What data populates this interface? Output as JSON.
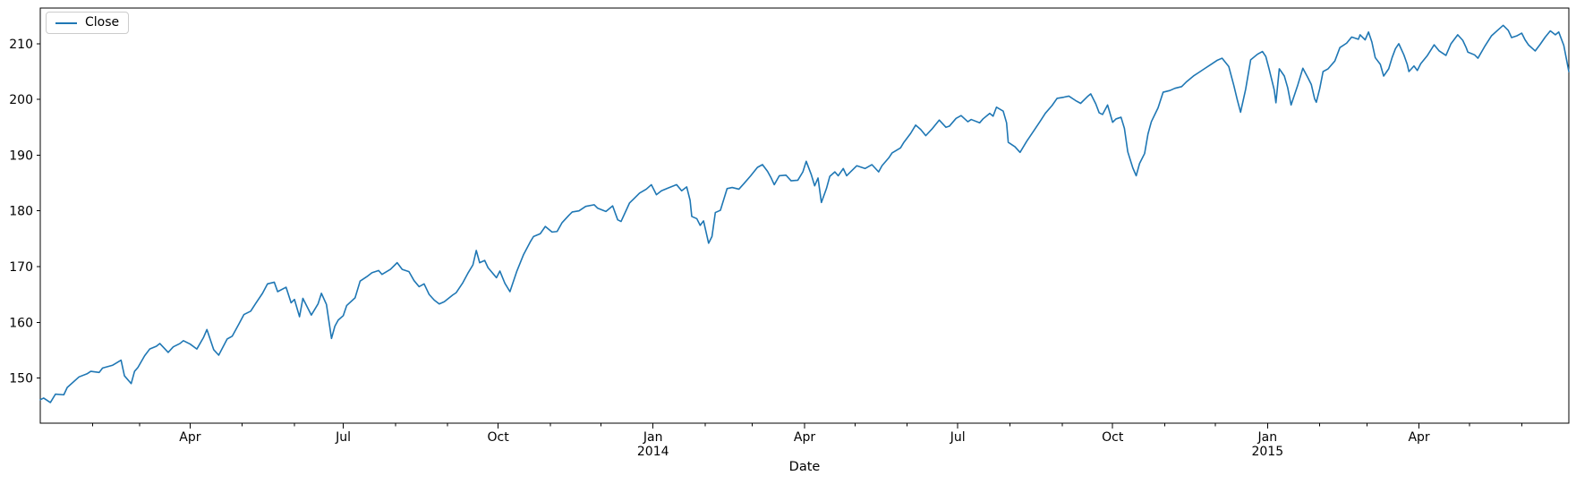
{
  "chart_data": {
    "type": "line",
    "title": "",
    "xlabel": "Date",
    "ylabel": "",
    "grid": false,
    "background": "#ffffff",
    "axis_color": "#000000",
    "tick_label_color": "#000000",
    "legend": {
      "position": "upper left",
      "entries": [
        {
          "label": "Close",
          "color": "#1f77b4"
        }
      ]
    },
    "x_unit": "day offset since 2013-01-02",
    "xlim": [
      0,
      908
    ],
    "ylim": [
      141.9,
      216.4
    ],
    "yticks": [
      150,
      160,
      170,
      180,
      190,
      200,
      210
    ],
    "xticks_major": [
      {
        "day": 89,
        "label": "Apr"
      },
      {
        "day": 180,
        "label": "Jul"
      },
      {
        "day": 272,
        "label": "Oct"
      },
      {
        "day": 364,
        "label": "Jan",
        "year": "2014"
      },
      {
        "day": 454,
        "label": "Apr"
      },
      {
        "day": 545,
        "label": "Jul"
      },
      {
        "day": 637,
        "label": "Oct"
      },
      {
        "day": 729,
        "label": "Jan",
        "year": "2015"
      },
      {
        "day": 819,
        "label": "Apr"
      }
    ],
    "xticks_minor": [
      31,
      59,
      120,
      151,
      211,
      242,
      303,
      333,
      395,
      423,
      484,
      515,
      576,
      607,
      668,
      698,
      760,
      788,
      849,
      880
    ],
    "series": [
      {
        "name": "Close",
        "color": "#1f77b4",
        "line_width": 1.6,
        "points": [
          [
            0,
            146.1
          ],
          [
            2,
            146.4
          ],
          [
            6,
            145.6
          ],
          [
            9,
            147.1
          ],
          [
            14,
            147.0
          ],
          [
            16,
            148.3
          ],
          [
            23,
            150.2
          ],
          [
            28,
            150.8
          ],
          [
            30,
            151.2
          ],
          [
            35,
            151.0
          ],
          [
            37,
            151.8
          ],
          [
            43,
            152.3
          ],
          [
            48,
            153.2
          ],
          [
            50,
            150.4
          ],
          [
            54,
            149.0
          ],
          [
            56,
            151.2
          ],
          [
            58,
            151.9
          ],
          [
            62,
            154.0
          ],
          [
            65,
            155.2
          ],
          [
            69,
            155.7
          ],
          [
            71,
            156.2
          ],
          [
            76,
            154.6
          ],
          [
            79,
            155.6
          ],
          [
            83,
            156.2
          ],
          [
            85,
            156.7
          ],
          [
            89,
            156.1
          ],
          [
            93,
            155.2
          ],
          [
            97,
            157.3
          ],
          [
            99,
            158.7
          ],
          [
            103,
            155.1
          ],
          [
            106,
            154.1
          ],
          [
            111,
            157.0
          ],
          [
            114,
            157.5
          ],
          [
            118,
            159.7
          ],
          [
            121,
            161.4
          ],
          [
            125,
            162.0
          ],
          [
            128,
            163.4
          ],
          [
            132,
            165.2
          ],
          [
            135,
            166.9
          ],
          [
            139,
            167.2
          ],
          [
            141,
            165.5
          ],
          [
            146,
            166.3
          ],
          [
            149,
            163.5
          ],
          [
            151,
            164.1
          ],
          [
            154,
            161.0
          ],
          [
            156,
            164.3
          ],
          [
            161,
            161.3
          ],
          [
            165,
            163.3
          ],
          [
            167,
            165.2
          ],
          [
            170,
            163.2
          ],
          [
            173,
            157.1
          ],
          [
            175,
            159.3
          ],
          [
            177,
            160.4
          ],
          [
            180,
            161.2
          ],
          [
            182,
            163.0
          ],
          [
            187,
            164.4
          ],
          [
            190,
            167.4
          ],
          [
            194,
            168.2
          ],
          [
            197,
            168.9
          ],
          [
            201,
            169.3
          ],
          [
            203,
            168.6
          ],
          [
            208,
            169.5
          ],
          [
            212,
            170.7
          ],
          [
            215,
            169.5
          ],
          [
            219,
            169.1
          ],
          [
            222,
            167.5
          ],
          [
            225,
            166.4
          ],
          [
            228,
            166.9
          ],
          [
            231,
            165.0
          ],
          [
            234,
            164.0
          ],
          [
            237,
            163.3
          ],
          [
            240,
            163.7
          ],
          [
            245,
            164.9
          ],
          [
            247,
            165.3
          ],
          [
            251,
            167.1
          ],
          [
            254,
            168.8
          ],
          [
            257,
            170.3
          ],
          [
            259,
            172.9
          ],
          [
            261,
            170.7
          ],
          [
            264,
            171.1
          ],
          [
            266,
            169.8
          ],
          [
            271,
            168.0
          ],
          [
            273,
            169.2
          ],
          [
            276,
            167.0
          ],
          [
            279,
            165.5
          ],
          [
            283,
            169.1
          ],
          [
            287,
            172.1
          ],
          [
            291,
            174.4
          ],
          [
            293,
            175.4
          ],
          [
            297,
            175.9
          ],
          [
            300,
            177.2
          ],
          [
            304,
            176.2
          ],
          [
            307,
            176.3
          ],
          [
            310,
            177.9
          ],
          [
            314,
            179.2
          ],
          [
            316,
            179.8
          ],
          [
            320,
            180.0
          ],
          [
            324,
            180.8
          ],
          [
            329,
            181.1
          ],
          [
            331,
            180.5
          ],
          [
            336,
            179.9
          ],
          [
            340,
            180.9
          ],
          [
            343,
            178.4
          ],
          [
            345,
            178.1
          ],
          [
            350,
            181.4
          ],
          [
            353,
            182.3
          ],
          [
            356,
            183.2
          ],
          [
            360,
            183.9
          ],
          [
            363,
            184.7
          ],
          [
            366,
            182.9
          ],
          [
            369,
            183.6
          ],
          [
            373,
            184.1
          ],
          [
            378,
            184.7
          ],
          [
            381,
            183.6
          ],
          [
            384,
            184.3
          ],
          [
            386,
            181.9
          ],
          [
            387,
            179.0
          ],
          [
            390,
            178.6
          ],
          [
            392,
            177.4
          ],
          [
            394,
            178.2
          ],
          [
            397,
            174.2
          ],
          [
            399,
            175.4
          ],
          [
            401,
            179.7
          ],
          [
            404,
            180.1
          ],
          [
            408,
            184.0
          ],
          [
            411,
            184.2
          ],
          [
            415,
            183.9
          ],
          [
            418,
            184.9
          ],
          [
            422,
            186.3
          ],
          [
            426,
            187.8
          ],
          [
            429,
            188.3
          ],
          [
            432,
            187.1
          ],
          [
            434,
            186.0
          ],
          [
            436,
            184.7
          ],
          [
            439,
            186.3
          ],
          [
            443,
            186.4
          ],
          [
            446,
            185.4
          ],
          [
            450,
            185.5
          ],
          [
            453,
            187.0
          ],
          [
            455,
            188.9
          ],
          [
            458,
            186.5
          ],
          [
            460,
            184.5
          ],
          [
            462,
            185.9
          ],
          [
            464,
            181.5
          ],
          [
            467,
            184.0
          ],
          [
            469,
            186.2
          ],
          [
            472,
            187.0
          ],
          [
            474,
            186.3
          ],
          [
            477,
            187.6
          ],
          [
            479,
            186.3
          ],
          [
            481,
            186.9
          ],
          [
            485,
            188.1
          ],
          [
            490,
            187.6
          ],
          [
            494,
            188.3
          ],
          [
            498,
            187.0
          ],
          [
            500,
            188.1
          ],
          [
            504,
            189.5
          ],
          [
            506,
            190.4
          ],
          [
            511,
            191.3
          ],
          [
            513,
            192.3
          ],
          [
            517,
            193.9
          ],
          [
            520,
            195.4
          ],
          [
            523,
            194.6
          ],
          [
            526,
            193.5
          ],
          [
            530,
            194.8
          ],
          [
            534,
            196.3
          ],
          [
            538,
            195.0
          ],
          [
            540,
            195.2
          ],
          [
            544,
            196.6
          ],
          [
            547,
            197.1
          ],
          [
            551,
            196.0
          ],
          [
            553,
            196.4
          ],
          [
            558,
            195.8
          ],
          [
            560,
            196.5
          ],
          [
            564,
            197.5
          ],
          [
            566,
            197.0
          ],
          [
            568,
            198.6
          ],
          [
            572,
            197.9
          ],
          [
            574,
            195.8
          ],
          [
            575,
            192.3
          ],
          [
            579,
            191.5
          ],
          [
            582,
            190.5
          ],
          [
            586,
            192.5
          ],
          [
            590,
            194.3
          ],
          [
            594,
            196.1
          ],
          [
            597,
            197.5
          ],
          [
            601,
            198.9
          ],
          [
            604,
            200.2
          ],
          [
            608,
            200.4
          ],
          [
            611,
            200.6
          ],
          [
            615,
            199.8
          ],
          [
            618,
            199.3
          ],
          [
            622,
            200.5
          ],
          [
            624,
            201.0
          ],
          [
            627,
            199.2
          ],
          [
            629,
            197.6
          ],
          [
            631,
            197.3
          ],
          [
            634,
            199.0
          ],
          [
            637,
            195.9
          ],
          [
            639,
            196.5
          ],
          [
            642,
            196.8
          ],
          [
            644,
            194.8
          ],
          [
            646,
            190.6
          ],
          [
            649,
            187.7
          ],
          [
            651,
            186.3
          ],
          [
            653,
            188.5
          ],
          [
            656,
            190.3
          ],
          [
            658,
            193.8
          ],
          [
            660,
            196.0
          ],
          [
            664,
            198.5
          ],
          [
            667,
            201.3
          ],
          [
            671,
            201.6
          ],
          [
            674,
            202.0
          ],
          [
            678,
            202.3
          ],
          [
            681,
            203.2
          ],
          [
            685,
            204.2
          ],
          [
            688,
            204.8
          ],
          [
            692,
            205.6
          ],
          [
            695,
            206.2
          ],
          [
            699,
            207.0
          ],
          [
            702,
            207.4
          ],
          [
            706,
            205.9
          ],
          [
            709,
            202.5
          ],
          [
            711,
            200.0
          ],
          [
            713,
            197.7
          ],
          [
            716,
            201.8
          ],
          [
            719,
            207.1
          ],
          [
            723,
            208.1
          ],
          [
            726,
            208.6
          ],
          [
            728,
            207.7
          ],
          [
            730,
            205.4
          ],
          [
            733,
            201.7
          ],
          [
            734,
            199.4
          ],
          [
            736,
            205.5
          ],
          [
            739,
            204.2
          ],
          [
            741,
            202.1
          ],
          [
            743,
            199.0
          ],
          [
            747,
            202.6
          ],
          [
            750,
            205.6
          ],
          [
            753,
            203.9
          ],
          [
            755,
            202.7
          ],
          [
            757,
            200.1
          ],
          [
            758,
            199.5
          ],
          [
            760,
            201.9
          ],
          [
            762,
            205.0
          ],
          [
            765,
            205.5
          ],
          [
            769,
            206.9
          ],
          [
            772,
            209.3
          ],
          [
            776,
            210.1
          ],
          [
            779,
            211.2
          ],
          [
            783,
            210.8
          ],
          [
            784,
            211.6
          ],
          [
            787,
            210.7
          ],
          [
            789,
            212.1
          ],
          [
            791,
            210.3
          ],
          [
            793,
            207.5
          ],
          [
            796,
            206.3
          ],
          [
            798,
            204.2
          ],
          [
            801,
            205.5
          ],
          [
            803,
            207.5
          ],
          [
            805,
            209.1
          ],
          [
            807,
            210.0
          ],
          [
            810,
            208.0
          ],
          [
            812,
            206.3
          ],
          [
            813,
            205.0
          ],
          [
            816,
            206.0
          ],
          [
            818,
            205.2
          ],
          [
            820,
            206.4
          ],
          [
            824,
            207.9
          ],
          [
            828,
            209.8
          ],
          [
            831,
            208.7
          ],
          [
            835,
            207.9
          ],
          [
            838,
            210.0
          ],
          [
            842,
            211.6
          ],
          [
            845,
            210.6
          ],
          [
            847,
            209.3
          ],
          [
            848,
            208.5
          ],
          [
            852,
            208.0
          ],
          [
            854,
            207.4
          ],
          [
            858,
            209.5
          ],
          [
            862,
            211.4
          ],
          [
            866,
            212.5
          ],
          [
            869,
            213.3
          ],
          [
            872,
            212.4
          ],
          [
            874,
            211.1
          ],
          [
            877,
            211.4
          ],
          [
            880,
            211.9
          ],
          [
            882,
            210.7
          ],
          [
            884,
            209.8
          ],
          [
            888,
            208.7
          ],
          [
            891,
            209.9
          ],
          [
            894,
            211.2
          ],
          [
            897,
            212.3
          ],
          [
            900,
            211.6
          ],
          [
            902,
            212.1
          ],
          [
            905,
            209.7
          ],
          [
            908,
            205.0
          ]
        ]
      }
    ]
  }
}
